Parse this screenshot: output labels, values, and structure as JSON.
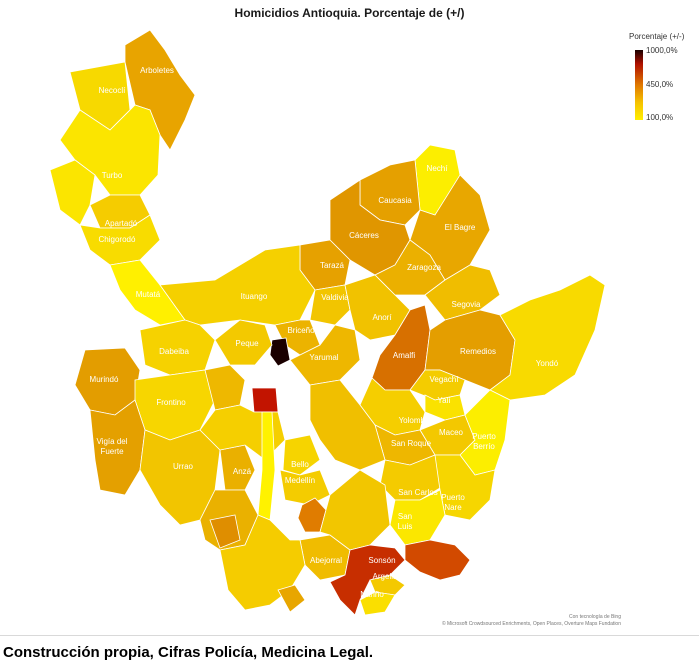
{
  "title": "Homicidios Antioquia. Porcentaje de (+/)",
  "legend": {
    "title": "Porcentaje (+/-)",
    "max_label": "1000,0%",
    "mid_label": "450,0%",
    "min_label": "100,0%",
    "colors": [
      "#1a0000",
      "#b01000",
      "#e07800",
      "#f5c200",
      "#ffef00"
    ]
  },
  "municipalities": [
    {
      "name": "Arboletes"
    },
    {
      "name": "Necoclí"
    },
    {
      "name": "Turbo"
    },
    {
      "name": "Apartadó"
    },
    {
      "name": "Chigorodó"
    },
    {
      "name": "Mutatá"
    },
    {
      "name": "Nechí"
    },
    {
      "name": "Caucasia"
    },
    {
      "name": "El Bagre"
    },
    {
      "name": "Cáceres"
    },
    {
      "name": "Tarazá"
    },
    {
      "name": "Zaragoza"
    },
    {
      "name": "Ituango"
    },
    {
      "name": "Valdivia"
    },
    {
      "name": "Segovia"
    },
    {
      "name": "Anorí"
    },
    {
      "name": "Briceño"
    },
    {
      "name": "Dabeiba"
    },
    {
      "name": "Peque"
    },
    {
      "name": "Yarumal"
    },
    {
      "name": "Amalfi"
    },
    {
      "name": "Remedios"
    },
    {
      "name": "Yondó"
    },
    {
      "name": "Murindó"
    },
    {
      "name": "Vegachí"
    },
    {
      "name": "Yalí"
    },
    {
      "name": "Frontino"
    },
    {
      "name": "Yolombó"
    },
    {
      "name": "Vigía del Fuerte"
    },
    {
      "name": "Maceo"
    },
    {
      "name": "San Roque"
    },
    {
      "name": "Puerto Berrío"
    },
    {
      "name": "Urrao"
    },
    {
      "name": "Anzá"
    },
    {
      "name": "Bello"
    },
    {
      "name": "Medellín"
    },
    {
      "name": "San Carlos"
    },
    {
      "name": "Puerto Nare"
    },
    {
      "name": "San Luis"
    },
    {
      "name": "Abejorral"
    },
    {
      "name": "Sonsón"
    },
    {
      "name": "Argelia"
    },
    {
      "name": "Nariño"
    }
  ],
  "attribution": {
    "line1": "Con tecnología de Bing",
    "line2": "© Microsoft Crowdsourced Enrichments, Open Places, Overture Maps Fundation"
  },
  "caption": "Construcción propia, Cifras Policía, Medicina Legal."
}
